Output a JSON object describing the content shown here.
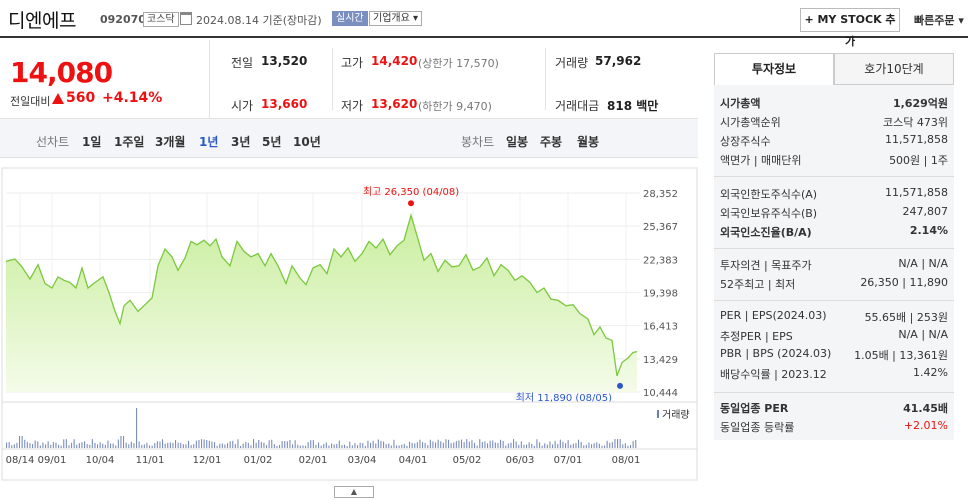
{
  "header": {
    "company_name": "디엔에프",
    "code": "092070",
    "market": "코스닥",
    "date": "2024.08.14 기준(장마감)",
    "realtime_label": "실시간",
    "info_label": "기업개요",
    "mystock_label": "+ MY STOCK 추가",
    "quick_order_label": "빠른주문"
  },
  "price": {
    "current": "14,080",
    "change_label": "전일대비",
    "change": "560",
    "change_pct": "+4.14%"
  },
  "quote": {
    "prev_label": "전일",
    "prev": "13,520",
    "open_label": "시가",
    "open": "13,660",
    "high_label": "고가",
    "high": "14,420",
    "upper_limit": "(상한가 17,570)",
    "low_label": "저가",
    "low": "13,620",
    "lower_limit": "(하한가 9,470)",
    "volume_label": "거래량",
    "volume": "57,962",
    "amount_label": "거래대금",
    "amount": "818 백만"
  },
  "periods": {
    "line_label": "선차트",
    "line_items": [
      "1일",
      "1주일",
      "3개월",
      "1년",
      "3년",
      "5년",
      "10년"
    ],
    "selected": "1년",
    "candle_label": "봉차트",
    "candle_items": [
      "일봉",
      "주봉",
      "월봉"
    ]
  },
  "chart_data": {
    "type": "area",
    "x_ticks": [
      "08/14",
      "09/01",
      "10/04",
      "11/01",
      "12/01",
      "01/02",
      "02/01",
      "03/04",
      "04/01",
      "05/02",
      "06/03",
      "07/01",
      "08/01"
    ],
    "y_ticks": [
      "28,352",
      "25,367",
      "22,383",
      "19,398",
      "16,413",
      "13,429",
      "10,444"
    ],
    "ylim": [
      10444,
      28352
    ],
    "annotations": [
      {
        "label": "최고 26,350 (04/08)",
        "value": 26350,
        "date": "04/08"
      },
      {
        "label": "최저 11,890 (08/05)",
        "value": 11890,
        "date": "08/05"
      }
    ],
    "volume_label": "거래량",
    "colors": {
      "line": "#7bc83e",
      "fill": "#c9ee9e",
      "high": "#e11",
      "low": "#2a58c8"
    }
  },
  "panel": {
    "tab_invest": "투자정보",
    "tab_orderbook": "호가10단계",
    "rows1": [
      {
        "label": "시가총액",
        "value": "1,629억원",
        "bold": true
      },
      {
        "label": "시가총액순위",
        "value": "코스닥 473위"
      },
      {
        "label": "상장주식수",
        "value": "11,571,858"
      },
      {
        "label": "액면가 | 매매단위",
        "value": "500원 | 1주"
      }
    ],
    "rows2": [
      {
        "label": "외국인한도주식수(A)",
        "value": "11,571,858"
      },
      {
        "label": "외국인보유주식수(B)",
        "value": "247,807"
      },
      {
        "label": "외국인소진율(B/A)",
        "value": "2.14%",
        "bold": true
      }
    ],
    "rows3": [
      {
        "label": "투자의견 | 목표주가",
        "value": "N/A | N/A"
      },
      {
        "label": "52주최고 | 최저",
        "value": "26,350 | 11,890"
      }
    ],
    "rows4": [
      {
        "label": "PER | EPS(2024.03)",
        "value": "55.65배 | 253원"
      },
      {
        "label": "추정PER | EPS",
        "value": "N/A | N/A"
      },
      {
        "label": "PBR | BPS (2024.03)",
        "value": "1.05배 | 13,361원"
      },
      {
        "label": "배당수익률 | 2023.12",
        "value": "1.42%"
      }
    ],
    "rows5": [
      {
        "label": "동일업종 PER",
        "value": "41.45배",
        "bold": true
      },
      {
        "label": "동일업종 등락률",
        "value": "+2.01%",
        "red": true
      }
    ]
  }
}
